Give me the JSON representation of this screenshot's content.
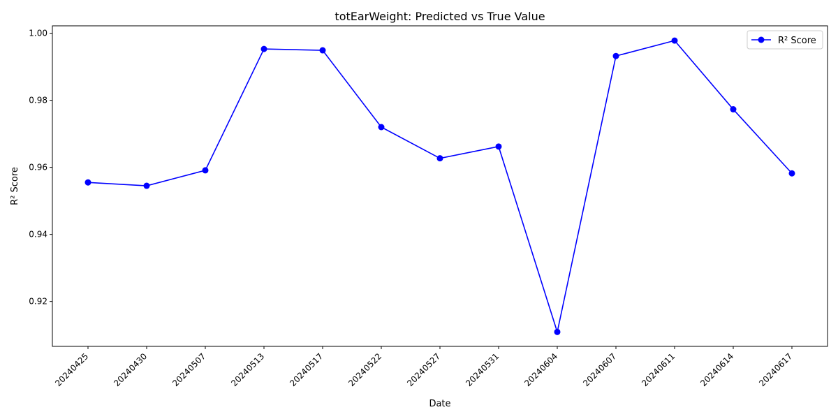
{
  "chart_data": {
    "type": "line",
    "title": "totEarWeight: Predicted vs True Value",
    "xlabel": "Date",
    "ylabel": "R² Score",
    "categories": [
      "20240425",
      "20240430",
      "20240507",
      "20240513",
      "20240517",
      "20240522",
      "20240527",
      "20240531",
      "20240604",
      "20240607",
      "20240611",
      "20240614",
      "20240617"
    ],
    "series": [
      {
        "name": "R² Score",
        "color": "#0000ff",
        "marker": "circle",
        "values": [
          0.9555,
          0.9545,
          0.9591,
          0.9953,
          0.9949,
          0.972,
          0.9627,
          0.9662,
          0.9109,
          0.9932,
          0.9978,
          0.9773,
          0.9582
        ]
      }
    ],
    "ylim": [
      0.9066,
      1.0022
    ],
    "yticks": [
      0.92,
      0.94,
      0.96,
      0.98,
      1.0
    ],
    "ytick_labels": [
      "0.92",
      "0.94",
      "0.96",
      "0.98",
      "1.00"
    ],
    "legend_position": "top-right",
    "grid": false
  }
}
